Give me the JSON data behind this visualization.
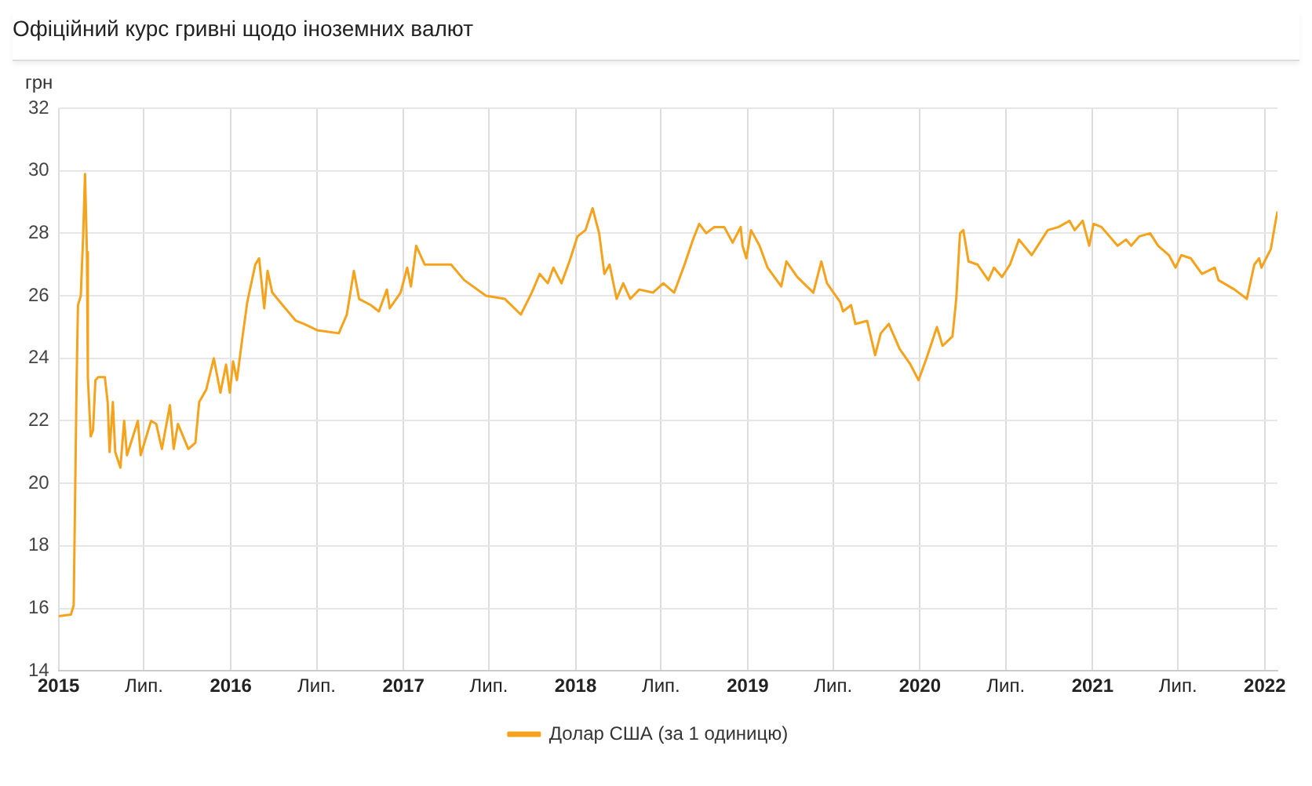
{
  "chart_data": {
    "type": "line",
    "title": "Офіційний курс гривні щодо іноземних валют",
    "ylabel": "грн",
    "x": [
      "2015-01-01",
      "2015-01-27",
      "2015-02-02",
      "2015-02-08",
      "2015-02-11",
      "2015-02-17",
      "2015-02-22",
      "2015-02-26",
      "2015-03-02",
      "2015-03-04",
      "2015-03-10",
      "2015-03-15",
      "2015-03-20",
      "2015-03-26",
      "2015-04-09",
      "2015-04-15",
      "2015-04-19",
      "2015-04-26",
      "2015-05-01",
      "2015-05-12",
      "2015-05-20",
      "2015-05-26",
      "2015-06-18",
      "2015-06-24",
      "2015-07-16",
      "2015-07-27",
      "2015-08-08",
      "2015-08-25",
      "2015-09-02",
      "2015-09-11",
      "2015-10-03",
      "2015-10-18",
      "2015-10-26",
      "2015-11-10",
      "2015-11-26",
      "2015-12-10",
      "2015-12-22",
      "2015-12-30",
      "2016-01-06",
      "2016-01-14",
      "2016-01-26",
      "2016-02-05",
      "2016-02-22",
      "2016-03-01",
      "2016-03-12",
      "2016-03-19",
      "2016-03-29",
      "2016-04-20",
      "2016-05-18",
      "2016-06-04",
      "2016-07-02",
      "2016-08-17",
      "2016-09-03",
      "2016-09-18",
      "2016-09-29",
      "2016-10-24",
      "2016-11-10",
      "2016-11-27",
      "2016-12-03",
      "2016-12-26",
      "2017-01-09",
      "2017-01-17",
      "2017-01-28",
      "2017-02-15",
      "2017-04-12",
      "2017-05-10",
      "2017-06-25",
      "2017-08-04",
      "2017-09-07",
      "2017-09-30",
      "2017-10-17",
      "2017-11-03",
      "2017-11-15",
      "2017-12-02",
      "2017-12-19",
      "2018-01-05",
      "2018-01-22",
      "2018-02-06",
      "2018-02-20",
      "2018-03-03",
      "2018-03-14",
      "2018-03-29",
      "2018-04-12",
      "2018-04-27",
      "2018-05-16",
      "2018-06-14",
      "2018-07-06",
      "2018-07-29",
      "2018-08-20",
      "2018-09-07",
      "2018-09-20",
      "2018-10-05",
      "2018-10-22",
      "2018-11-12",
      "2018-11-30",
      "2018-12-17",
      "2018-12-21",
      "2018-12-29",
      "2019-01-08",
      "2019-01-26",
      "2019-02-12",
      "2019-03-13",
      "2019-03-24",
      "2019-04-16",
      "2019-05-20",
      "2019-06-06",
      "2019-06-18",
      "2019-07-16",
      "2019-07-22",
      "2019-08-08",
      "2019-08-17",
      "2019-09-11",
      "2019-09-28",
      "2019-10-10",
      "2019-10-27",
      "2019-11-19",
      "2019-12-12",
      "2019-12-29",
      "2020-01-15",
      "2020-02-06",
      "2020-02-18",
      "2020-03-10",
      "2020-03-18",
      "2020-03-26",
      "2020-04-02",
      "2020-04-13",
      "2020-05-02",
      "2020-05-25",
      "2020-06-06",
      "2020-06-23",
      "2020-07-10",
      "2020-07-29",
      "2020-08-25",
      "2020-09-28",
      "2020-10-21",
      "2020-11-13",
      "2020-11-24",
      "2020-12-11",
      "2020-12-25",
      "2021-01-03",
      "2021-01-20",
      "2021-02-06",
      "2021-02-23",
      "2021-03-13",
      "2021-03-24",
      "2021-04-10",
      "2021-05-03",
      "2021-05-20",
      "2021-06-12",
      "2021-06-26",
      "2021-07-08",
      "2021-07-28",
      "2021-08-21",
      "2021-09-17",
      "2021-09-25",
      "2021-10-29",
      "2021-11-24",
      "2021-12-10",
      "2021-12-20",
      "2021-12-25",
      "2022-01-04",
      "2022-01-14",
      "2022-01-23",
      "2022-01-28"
    ],
    "series": [
      {
        "name": "Долар США (за 1 одиницю)",
        "color": "#f5a21c",
        "values": [
          15.75,
          15.8,
          16.1,
          23.1,
          25.7,
          26.0,
          27.9,
          29.9,
          27.4,
          23.4,
          21.5,
          21.7,
          23.3,
          23.4,
          23.4,
          22.6,
          21.0,
          22.6,
          21.0,
          20.5,
          22.0,
          20.9,
          22.0,
          20.9,
          22.0,
          21.9,
          21.1,
          22.5,
          21.1,
          21.9,
          21.1,
          21.3,
          22.6,
          23.0,
          24.0,
          22.9,
          23.8,
          22.9,
          23.9,
          23.3,
          24.7,
          25.8,
          27.0,
          27.2,
          25.6,
          26.8,
          26.1,
          25.7,
          25.2,
          25.1,
          24.9,
          24.8,
          25.4,
          26.8,
          25.9,
          25.7,
          25.5,
          26.2,
          25.6,
          26.1,
          26.9,
          26.3,
          27.6,
          27.0,
          27.0,
          26.5,
          26.0,
          25.9,
          25.4,
          26.1,
          26.7,
          26.4,
          26.9,
          26.4,
          27.1,
          27.9,
          28.1,
          28.8,
          28.0,
          26.7,
          27.0,
          25.9,
          26.4,
          25.9,
          26.2,
          26.1,
          26.4,
          26.1,
          27.0,
          27.8,
          28.3,
          28.0,
          28.2,
          28.2,
          27.7,
          28.2,
          27.6,
          27.2,
          28.1,
          27.6,
          26.9,
          26.3,
          27.1,
          26.6,
          26.1,
          27.1,
          26.4,
          25.8,
          25.5,
          25.7,
          25.1,
          25.2,
          24.1,
          24.8,
          25.1,
          24.3,
          23.8,
          23.3,
          24.0,
          25.0,
          24.4,
          24.7,
          25.9,
          28.0,
          28.1,
          27.1,
          27.0,
          26.5,
          26.9,
          26.6,
          27.0,
          27.8,
          27.3,
          28.1,
          28.2,
          28.4,
          28.1,
          28.4,
          27.6,
          28.3,
          28.2,
          27.9,
          27.6,
          27.8,
          27.6,
          27.9,
          28.0,
          27.6,
          27.3,
          26.9,
          27.3,
          27.2,
          26.7,
          26.9,
          26.5,
          26.2,
          25.9,
          27.0,
          27.2,
          26.9,
          27.2,
          27.5,
          28.3,
          28.7
        ]
      }
    ],
    "xlim": [
      "2015-01-01",
      "2022-01-28"
    ],
    "xticks": [
      {
        "value": "2015-01-01",
        "label": "2015"
      },
      {
        "value": "2015-07-01",
        "label": "Лип."
      },
      {
        "value": "2016-01-01",
        "label": "2016"
      },
      {
        "value": "2016-07-01",
        "label": "Лип."
      },
      {
        "value": "2017-01-01",
        "label": "2017"
      },
      {
        "value": "2017-07-01",
        "label": "Лип."
      },
      {
        "value": "2018-01-01",
        "label": "2018"
      },
      {
        "value": "2018-07-01",
        "label": "Лип."
      },
      {
        "value": "2019-01-01",
        "label": "2019"
      },
      {
        "value": "2019-07-01",
        "label": "Лип."
      },
      {
        "value": "2020-01-01",
        "label": "2020"
      },
      {
        "value": "2020-07-01",
        "label": "Лип."
      },
      {
        "value": "2021-01-01",
        "label": "2021"
      },
      {
        "value": "2021-07-01",
        "label": "Лип."
      },
      {
        "value": "2022-01-01",
        "label": "2022"
      }
    ],
    "ylim": [
      14,
      32
    ],
    "yticks": [
      14,
      16,
      18,
      20,
      22,
      24,
      26,
      28,
      30,
      32
    ],
    "grid": true,
    "legend": "bottom",
    "marker": "none",
    "line_style": "solid"
  }
}
